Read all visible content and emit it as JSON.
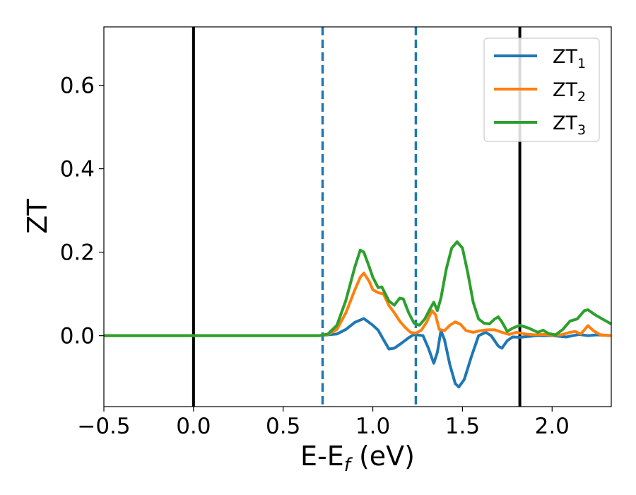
{
  "chart_data": {
    "type": "line",
    "title": "",
    "xlabel": {
      "base": "E-E",
      "sub": "f",
      "rest": " (eV)"
    },
    "ylabel": "ZT",
    "xlim": [
      -0.5,
      2.33
    ],
    "ylim": [
      -0.17,
      0.74
    ],
    "xticks": [
      -0.5,
      0.0,
      0.5,
      1.0,
      1.5,
      2.0
    ],
    "xtick_labels": [
      "−0.5",
      "0.0",
      "0.5",
      "1.0",
      "1.5",
      "2.0"
    ],
    "yticks": [
      0.0,
      0.2,
      0.4,
      0.6
    ],
    "ytick_labels": [
      "0.0",
      "0.2",
      "0.4",
      "0.6"
    ],
    "grid": false,
    "legend_position": "top-right",
    "vlines": [
      {
        "x": 0.0,
        "style": "solid",
        "color": "#000000"
      },
      {
        "x": 0.72,
        "style": "dashed",
        "color": "#1f77b4"
      },
      {
        "x": 1.24,
        "style": "dashed",
        "color": "#1f77b4"
      },
      {
        "x": 1.82,
        "style": "solid",
        "color": "#000000"
      }
    ],
    "series": [
      {
        "name": {
          "base": "ZT",
          "sub": "1"
        },
        "color": "#1f77b4",
        "points": [
          [
            -0.5,
            0
          ],
          [
            0.7,
            0
          ],
          [
            0.8,
            0.004
          ],
          [
            0.85,
            0.015
          ],
          [
            0.9,
            0.032
          ],
          [
            0.95,
            0.041
          ],
          [
            1.0,
            0.025
          ],
          [
            1.03,
            0.013
          ],
          [
            1.06,
            -0.01
          ],
          [
            1.09,
            -0.032
          ],
          [
            1.12,
            -0.03
          ],
          [
            1.16,
            -0.018
          ],
          [
            1.2,
            -0.005
          ],
          [
            1.23,
            0.003
          ],
          [
            1.28,
            0.0
          ],
          [
            1.31,
            -0.03
          ],
          [
            1.34,
            -0.066
          ],
          [
            1.36,
            -0.04
          ],
          [
            1.38,
            0.012
          ],
          [
            1.4,
            -0.01
          ],
          [
            1.43,
            -0.07
          ],
          [
            1.46,
            -0.115
          ],
          [
            1.48,
            -0.123
          ],
          [
            1.51,
            -0.105
          ],
          [
            1.55,
            -0.05
          ],
          [
            1.59,
            0.0
          ],
          [
            1.63,
            0.008
          ],
          [
            1.66,
            0.0
          ],
          [
            1.7,
            -0.025
          ],
          [
            1.72,
            -0.03
          ],
          [
            1.75,
            -0.012
          ],
          [
            1.78,
            -0.003
          ],
          [
            1.82,
            -0.004
          ],
          [
            1.86,
            -0.002
          ],
          [
            1.92,
            0.0
          ],
          [
            2.0,
            0.0
          ],
          [
            2.08,
            -0.003
          ],
          [
            2.15,
            0.003
          ],
          [
            2.2,
            0.0
          ],
          [
            2.25,
            0.002
          ],
          [
            2.33,
            0.0
          ]
        ]
      },
      {
        "name": {
          "base": "ZT",
          "sub": "2"
        },
        "color": "#ff7f0e",
        "points": [
          [
            -0.5,
            0
          ],
          [
            0.7,
            0
          ],
          [
            0.75,
            0.003
          ],
          [
            0.8,
            0.015
          ],
          [
            0.85,
            0.055
          ],
          [
            0.9,
            0.11
          ],
          [
            0.93,
            0.14
          ],
          [
            0.95,
            0.15
          ],
          [
            0.98,
            0.13
          ],
          [
            1.0,
            0.11
          ],
          [
            1.03,
            0.103
          ],
          [
            1.06,
            0.1
          ],
          [
            1.09,
            0.072
          ],
          [
            1.12,
            0.055
          ],
          [
            1.15,
            0.035
          ],
          [
            1.18,
            0.02
          ],
          [
            1.21,
            0.008
          ],
          [
            1.24,
            0.006
          ],
          [
            1.27,
            0.013
          ],
          [
            1.3,
            0.032
          ],
          [
            1.33,
            0.06
          ],
          [
            1.35,
            0.05
          ],
          [
            1.37,
            0.015
          ],
          [
            1.4,
            0.012
          ],
          [
            1.43,
            0.025
          ],
          [
            1.46,
            0.033
          ],
          [
            1.49,
            0.027
          ],
          [
            1.52,
            0.012
          ],
          [
            1.56,
            0.008
          ],
          [
            1.6,
            0.012
          ],
          [
            1.64,
            0.014
          ],
          [
            1.68,
            0.014
          ],
          [
            1.72,
            0.008
          ],
          [
            1.76,
            0.003
          ],
          [
            1.8,
            0.008
          ],
          [
            1.85,
            0.004
          ],
          [
            1.9,
            0.002
          ],
          [
            1.95,
            0.003
          ],
          [
            2.0,
            0.001
          ],
          [
            2.05,
            0.002
          ],
          [
            2.1,
            0.008
          ],
          [
            2.13,
            0.01
          ],
          [
            2.16,
            0.004
          ],
          [
            2.2,
            0.024
          ],
          [
            2.23,
            0.012
          ],
          [
            2.27,
            0.002
          ],
          [
            2.33,
            0.0
          ]
        ]
      },
      {
        "name": {
          "base": "ZT",
          "sub": "3"
        },
        "color": "#2ca02c",
        "points": [
          [
            -0.5,
            0
          ],
          [
            0.7,
            0
          ],
          [
            0.75,
            0.004
          ],
          [
            0.8,
            0.025
          ],
          [
            0.85,
            0.085
          ],
          [
            0.9,
            0.165
          ],
          [
            0.93,
            0.205
          ],
          [
            0.95,
            0.2
          ],
          [
            0.98,
            0.165
          ],
          [
            1.0,
            0.14
          ],
          [
            1.03,
            0.115
          ],
          [
            1.05,
            0.117
          ],
          [
            1.07,
            0.1
          ],
          [
            1.09,
            0.083
          ],
          [
            1.12,
            0.073
          ],
          [
            1.15,
            0.09
          ],
          [
            1.17,
            0.088
          ],
          [
            1.2,
            0.055
          ],
          [
            1.23,
            0.03
          ],
          [
            1.26,
            0.025
          ],
          [
            1.29,
            0.04
          ],
          [
            1.32,
            0.065
          ],
          [
            1.34,
            0.08
          ],
          [
            1.36,
            0.06
          ],
          [
            1.38,
            0.09
          ],
          [
            1.41,
            0.16
          ],
          [
            1.44,
            0.21
          ],
          [
            1.47,
            0.225
          ],
          [
            1.5,
            0.21
          ],
          [
            1.53,
            0.15
          ],
          [
            1.56,
            0.08
          ],
          [
            1.59,
            0.04
          ],
          [
            1.62,
            0.03
          ],
          [
            1.65,
            0.028
          ],
          [
            1.68,
            0.04
          ],
          [
            1.7,
            0.045
          ],
          [
            1.72,
            0.033
          ],
          [
            1.75,
            0.01
          ],
          [
            1.78,
            0.018
          ],
          [
            1.82,
            0.025
          ],
          [
            1.87,
            0.018
          ],
          [
            1.92,
            0.008
          ],
          [
            1.95,
            0.013
          ],
          [
            1.98,
            0.005
          ],
          [
            2.02,
            0.002
          ],
          [
            2.06,
            0.015
          ],
          [
            2.1,
            0.035
          ],
          [
            2.14,
            0.04
          ],
          [
            2.18,
            0.06
          ],
          [
            2.2,
            0.062
          ],
          [
            2.24,
            0.05
          ],
          [
            2.28,
            0.04
          ],
          [
            2.33,
            0.028
          ]
        ]
      }
    ]
  }
}
